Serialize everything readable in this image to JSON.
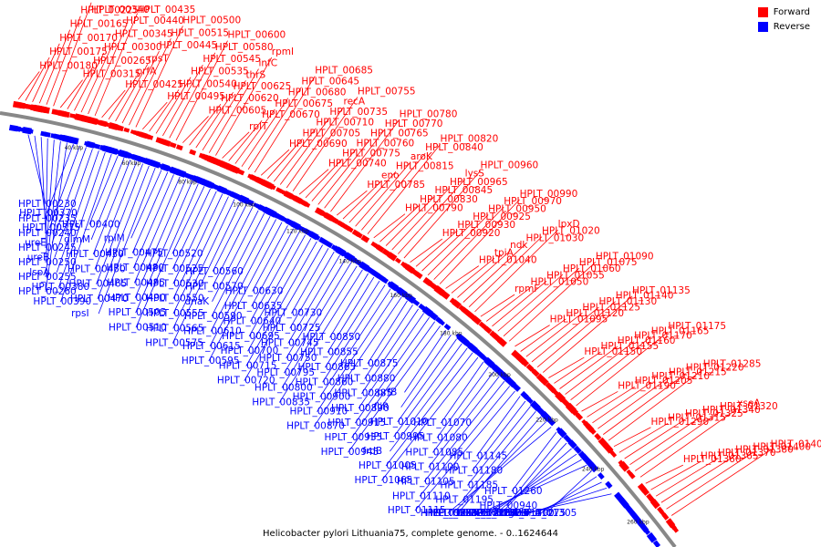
{
  "legend": {
    "forward": {
      "label": "Forward",
      "color": "#ff0000"
    },
    "reverse": {
      "label": "Reverse",
      "color": "#0000ff"
    }
  },
  "caption": "Helicobacter pylori Lithuania75, complete genome. - 0..1624644",
  "ticks": [
    "40 kbp",
    "60 kbp",
    "80 kbp",
    "100 kbp",
    "120 kbp",
    "140 kbp",
    "160 kbp",
    "180 kbp",
    "200 kbp",
    "220 kbp",
    "240 kbp",
    "260 kbp"
  ],
  "forward_labels": [
    "HPLT_00180",
    "HPLT_00175",
    "HPLT_00170",
    "HPLT_00165",
    "HPLT_00225",
    "HPLT_00340",
    "HPLT_00315",
    "HPLT_00265",
    "HPLT_00300",
    "HPLT_00345",
    "HPLT_00440",
    "HPLT_00435",
    "HPLT_00425",
    "prfA",
    "rpsT",
    "HPLT_00445",
    "HPLT_00515",
    "HPLT_00500",
    "HPLT_00495",
    "HPLT_00540",
    "HPLT_00535",
    "HPLT_00545",
    "HPLT_00580",
    "HPLT_00600",
    "HPLT_00605",
    "HPLT_00620",
    "HPLT_00625",
    "thrS",
    "infC",
    "rpmI",
    "rplT",
    "HPLT_00670",
    "HPLT_00675",
    "HPLT_00680",
    "HPLT_00645",
    "HPLT_00685",
    "HPLT_00690",
    "HPLT_00705",
    "HPLT_00710",
    "HPLT_00735",
    "recA",
    "HPLT_00755",
    "HPLT_00740",
    "HPLT_00775",
    "HPLT_00760",
    "HPLT_00765",
    "HPLT_00770",
    "HPLT_00780",
    "HPLT_00785",
    "eno",
    "HPLT_00815",
    "aroK",
    "HPLT_00840",
    "HPLT_00820",
    "HPLT_00790",
    "HPLT_00830",
    "HPLT_00845",
    "HPLT_00965",
    "lysS",
    "HPLT_00960",
    "HPLT_00920",
    "HPLT_00930",
    "HPLT_00925",
    "HPLT_00950",
    "HPLT_00970",
    "HPLT_00990",
    "HPLT_01040",
    "tpiA",
    "ndk",
    "HPLT_01030",
    "HPLT_01020",
    "lpxD",
    "rpmF",
    "HPLT_01050",
    "HPLT_01055",
    "HPLT_01060",
    "HPLT_01075",
    "HPLT_01090",
    "HPLT_01095",
    "HPLT_01120",
    "HPLT_01125",
    "HPLT_01130",
    "HPLT_01140",
    "HPLT_01135",
    "HPLT_01150",
    "HPLT_01155",
    "HPLT_01160",
    "HPLT_01170",
    "HPLT_01165",
    "HPLT_01175",
    "HPLT_01190",
    "HPLT_01205",
    "HPLT_01210",
    "HPLT_01215",
    "HPLT_01220",
    "HPLT_01285",
    "HPLT_01290",
    "HPLT_01315",
    "HPLT_01325",
    "HPLT_01340",
    "HPLT_01320",
    "xseA",
    "HPLT_01360",
    "HPLT_01365",
    "HPLT_01370",
    "HPLT_01380",
    "HPLT_01400",
    "HPLT_01405"
  ],
  "reverse_labels": [
    "HPLT_00230",
    "HPLT_00235",
    "HPLT_00240",
    "HPLT_00245",
    "HPLT_00250",
    "HPLT_00255",
    "HPLT_00260",
    "HPLT_00370",
    "HPLT_00375",
    "ureE",
    "ureB",
    "lspA",
    "HPLT_00380",
    "HPLT_00390",
    "HPLT_00400",
    "glmM",
    "HPLT_00430",
    "HPLT_00450",
    "HPLT_00465",
    "HPLT_00470",
    "rpsI",
    "rplM",
    "HPLT_00475",
    "HPLT_00480",
    "HPLT_00485",
    "HPLT_00490",
    "HPLT_00505",
    "HPLT_00510",
    "HPLT_00520",
    "HPLT_00525",
    "HPLT_00530",
    "HPLT_00550",
    "HPLT_00555",
    "HPLT_00565",
    "HPLT_00575",
    "HPLT_00560",
    "HPLT_00570",
    "dnaK",
    "HPLT_00590",
    "HPLT_00610",
    "HPLT_00615",
    "HPLT_00595",
    "HPLT_00630",
    "HPLT_00635",
    "HPLT_00640",
    "HPLT_00695",
    "HPLT_00700",
    "HPLT_00715",
    "HPLT_00720",
    "HPLT_00730",
    "HPLT_00725",
    "HPLT_00745",
    "HPLT_00750",
    "HPLT_00795",
    "HPLT_00800",
    "HPLT_00835",
    "HPLT_00850",
    "HPLT_00855",
    "HPLT_00865",
    "HPLT_00860",
    "HPLT_00900",
    "HPLT_00910",
    "HPLT_00870",
    "HPLT_00875",
    "HPLT_00880",
    "HPLT_00885",
    "HPLT_00890",
    "HPLT_00915",
    "HPLT_00935",
    "HPLT_00945",
    "prfB",
    "fliR",
    "HPLT_01010",
    "HPLT_00995",
    "frdB",
    "HPLT_01005",
    "HPLT_01065",
    "HPLT_01070",
    "HPLT_01080",
    "HPLT_01085",
    "HPLT_01100",
    "HPLT_01105",
    "HPLT_01110",
    "HPLT_01115",
    "HPLT_01145",
    "HPLT_01180",
    "HPLT_01185",
    "HPLT_01195",
    "HPLT_01225",
    "HPLT_01200",
    "HPLT_01255",
    "HPLT_01260",
    "HPLT_00940",
    "hemC",
    "HPLT_01270",
    "HPLT_01250",
    "HPLT_01230",
    "HPLT_01265",
    "HPLT_01305",
    "hemA",
    "HPLT_01275",
    "flgL",
    "HPLT_01300"
  ]
}
